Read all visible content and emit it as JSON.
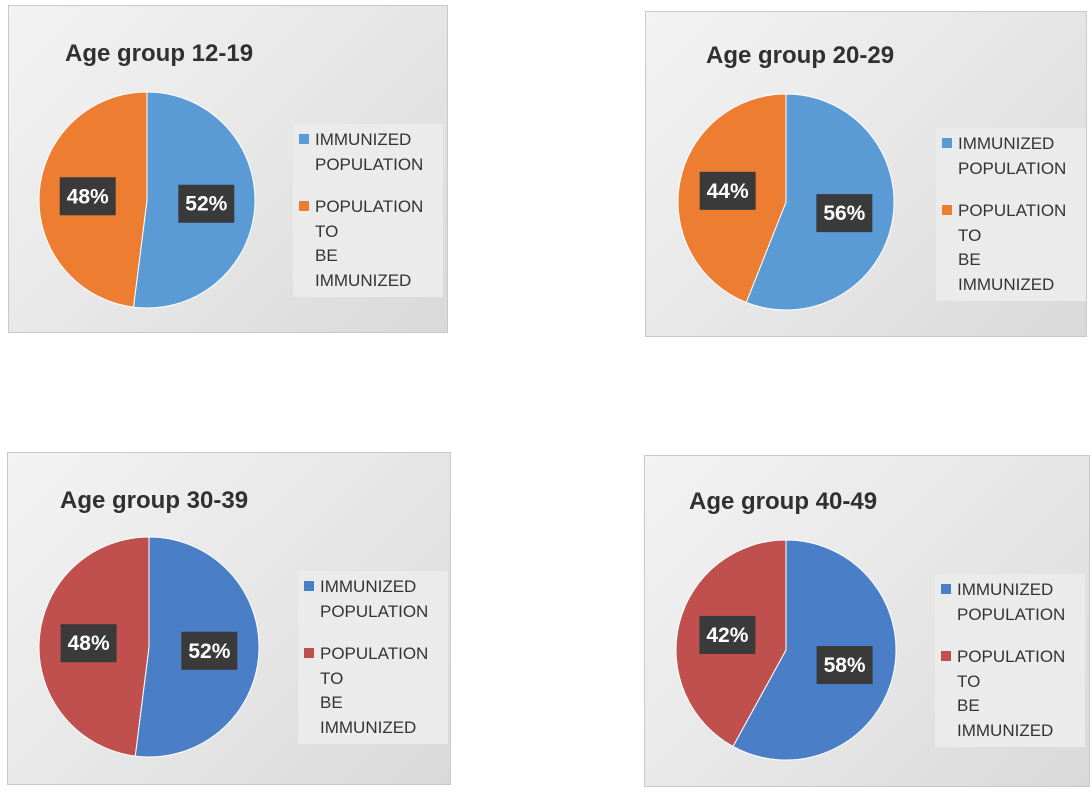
{
  "chart_data": [
    {
      "type": "pie",
      "title": "Age group 12-19",
      "categories": [
        "IMMUNIZED POPULATION",
        "POPULATION TO BE IMMUNIZED"
      ],
      "values": [
        52,
        48
      ],
      "data_labels": [
        "52%",
        "48%"
      ],
      "colors": [
        "#5b9bd5",
        "#ed7d31"
      ],
      "legend": "right"
    },
    {
      "type": "pie",
      "title": "Age group 20-29",
      "categories": [
        "IMMUNIZED POPULATION",
        "POPULATION TO BE IMMUNIZED"
      ],
      "values": [
        56,
        44
      ],
      "data_labels": [
        "56%",
        "44%"
      ],
      "colors": [
        "#5b9bd5",
        "#ed7d31"
      ],
      "legend": "right"
    },
    {
      "type": "pie",
      "title": "Age group 30-39",
      "categories": [
        "IMMUNIZED POPULATION",
        "POPULATION TO BE IMMUNIZED"
      ],
      "values": [
        52,
        48
      ],
      "data_labels": [
        "52%",
        "48%"
      ],
      "colors": [
        "#4a7fc8",
        "#c0504d"
      ],
      "legend": "right"
    },
    {
      "type": "pie",
      "title": "Age group 40-49",
      "categories": [
        "IMMUNIZED POPULATION",
        "POPULATION TO BE IMMUNIZED"
      ],
      "values": [
        58,
        42
      ],
      "data_labels": [
        "58%",
        "42%"
      ],
      "colors": [
        "#4a7fc8",
        "#c0504d"
      ],
      "legend": "right"
    }
  ]
}
